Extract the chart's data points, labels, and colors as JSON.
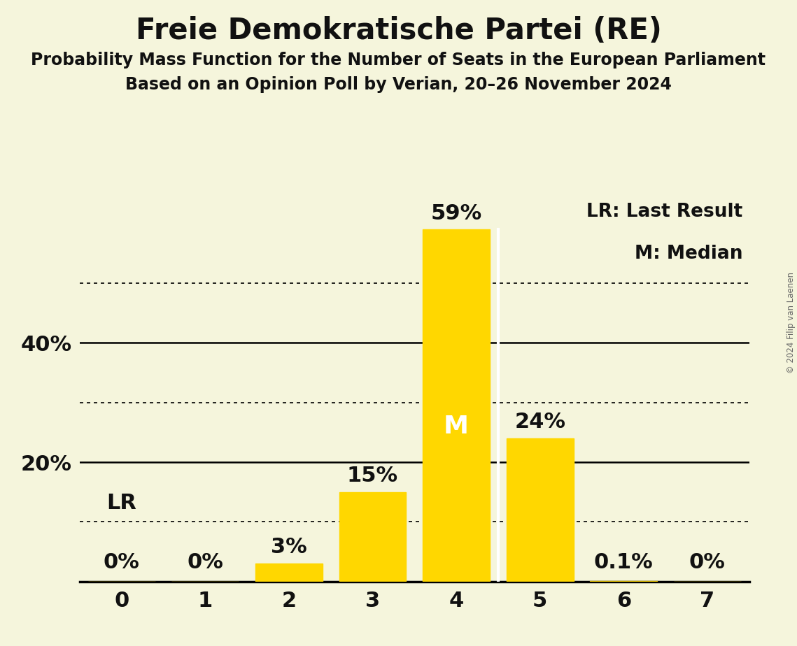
{
  "title": "Freie Demokratische Partei (RE)",
  "subtitle1": "Probability Mass Function for the Number of Seats in the European Parliament",
  "subtitle2": "Based on an Opinion Poll by Verian, 20–26 November 2024",
  "copyright": "© 2024 Filip van Laenen",
  "categories": [
    0,
    1,
    2,
    3,
    4,
    5,
    6,
    7
  ],
  "values": [
    0.0,
    0.0,
    3.0,
    15.0,
    59.0,
    24.0,
    0.1,
    0.0
  ],
  "labels": [
    "0%",
    "0%",
    "3%",
    "15%",
    "59%",
    "24%",
    "0.1%",
    "0%"
  ],
  "bar_color": "#FFD700",
  "background_color": "#F5F5DC",
  "text_color": "#111111",
  "median_seat": 4,
  "last_result_seat": 0,
  "legend_lr": "LR: Last Result",
  "legend_m": "M: Median",
  "lr_label": "LR",
  "m_label": "M",
  "solid_levels": [
    0,
    20,
    40
  ],
  "dotted_levels": [
    10,
    30,
    50
  ],
  "ylim": [
    0,
    65
  ],
  "xlim": [
    -0.5,
    7.5
  ]
}
